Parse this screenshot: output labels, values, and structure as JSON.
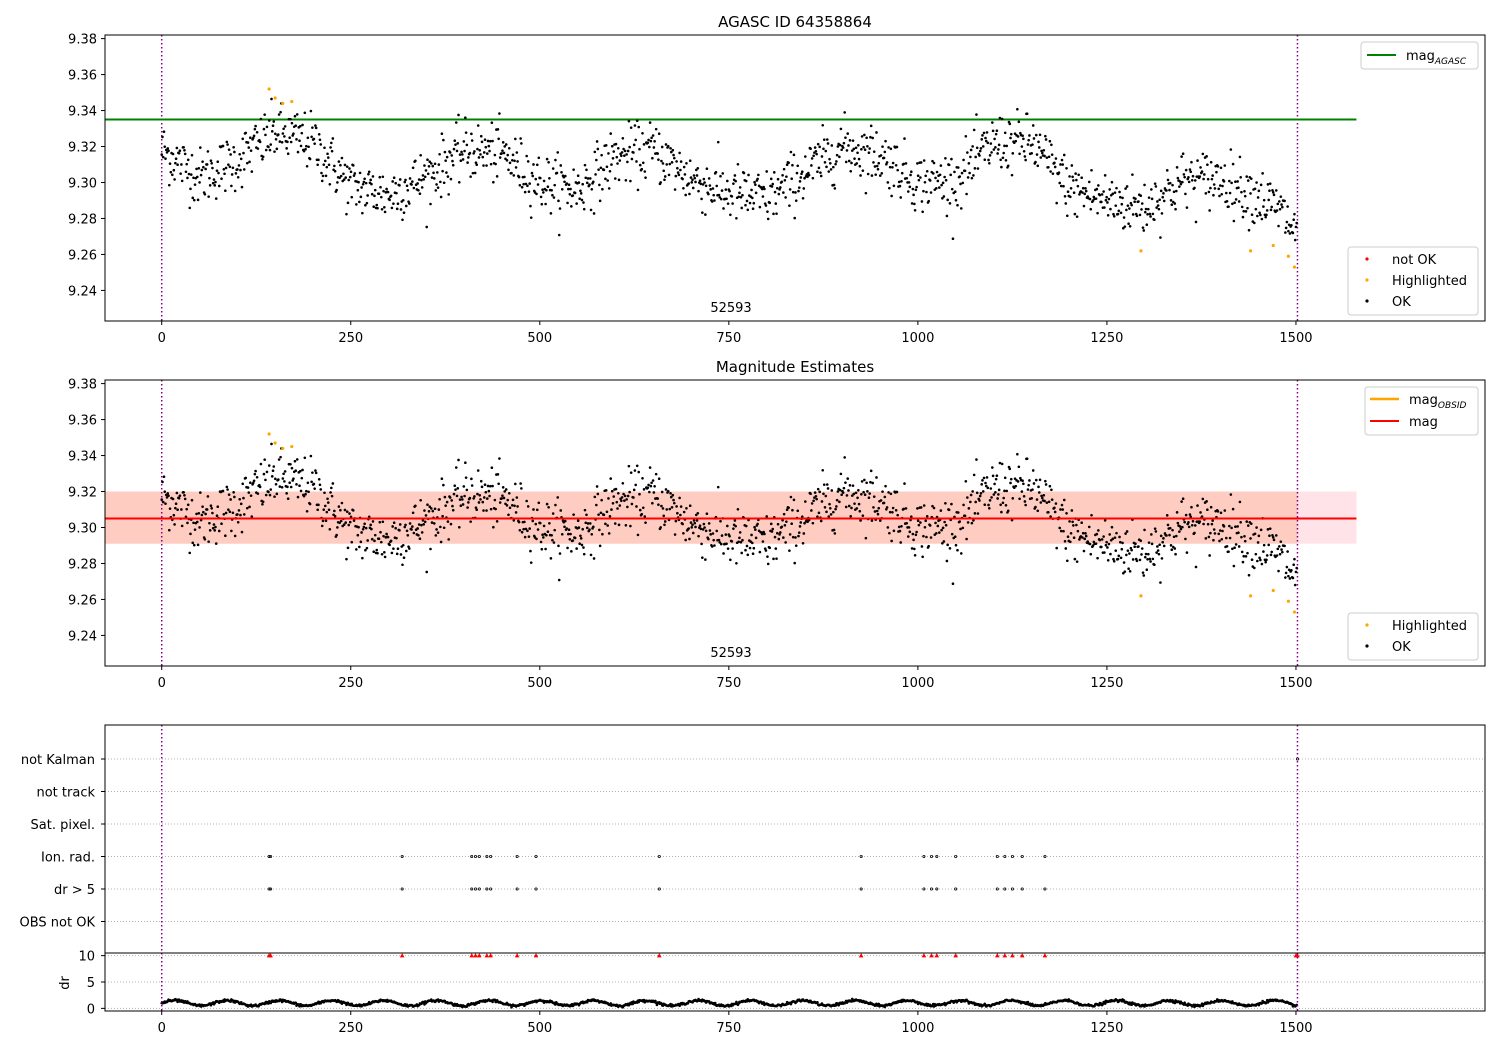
{
  "chart_data": [
    {
      "type": "scatter",
      "title": "AGASC ID 64358864",
      "xlabel": "",
      "ylabel": "",
      "xlim": [
        -75,
        1750
      ],
      "ylim": [
        9.223,
        9.382
      ],
      "x_ticks": [
        0,
        250,
        500,
        750,
        1000,
        1250,
        1500
      ],
      "x_tick_labels": [
        "0",
        "250",
        "500",
        "750",
        "1000",
        "1250",
        "1500"
      ],
      "y_ticks": [
        9.24,
        9.26,
        9.28,
        9.3,
        9.32,
        9.34,
        9.36,
        9.38
      ],
      "y_tick_labels": [
        "9.24",
        "9.26",
        "9.28",
        "9.30",
        "9.32",
        "9.34",
        "9.36",
        "9.38"
      ],
      "vlines": [
        0,
        1502
      ],
      "hline": {
        "label": "mag",
        "label_sub": "AGASC",
        "value": 9.335,
        "xmax": 1580,
        "color": "#008000"
      },
      "annotation": {
        "text": "52593",
        "x": 750,
        "y": 9.228
      },
      "legend_top": {
        "position": "top-right",
        "entries": [
          {
            "label": "mag",
            "sub": "AGASC",
            "color": "#008000"
          }
        ]
      },
      "legend_bottom": {
        "position": "bottom-right",
        "entries": [
          {
            "label": "not OK",
            "color": "#ff0000"
          },
          {
            "label": "Highlighted",
            "color": "#ffa500"
          },
          {
            "label": "OK",
            "color": "#000000"
          }
        ]
      },
      "highlighted": {
        "x": [
          142,
          150,
          160,
          172,
          1295,
          1440,
          1470,
          1490,
          1498
        ],
        "y": [
          9.352,
          9.347,
          9.344,
          9.345,
          9.262,
          9.262,
          9.265,
          9.259,
          9.253
        ]
      },
      "ok_trend": {
        "x": [
          0,
          50,
          100,
          150,
          200,
          250,
          300,
          350,
          400,
          450,
          500,
          550,
          600,
          650,
          700,
          750,
          800,
          850,
          900,
          950,
          1000,
          1050,
          1100,
          1150,
          1200,
          1250,
          1300,
          1350,
          1400,
          1450,
          1480,
          1500
        ],
        "y": [
          9.318,
          9.303,
          9.312,
          9.328,
          9.322,
          9.298,
          9.293,
          9.303,
          9.318,
          9.316,
          9.3,
          9.296,
          9.314,
          9.318,
          9.302,
          9.294,
          9.291,
          9.305,
          9.32,
          9.315,
          9.3,
          9.301,
          9.322,
          9.322,
          9.297,
          9.29,
          9.286,
          9.301,
          9.302,
          9.292,
          9.284,
          9.272
        ],
        "n_points": 1500,
        "scatter": 0.008
      }
    },
    {
      "type": "scatter",
      "title": "Magnitude Estimates",
      "xlabel": "",
      "ylabel": "",
      "xlim": [
        -75,
        1750
      ],
      "ylim": [
        9.223,
        9.382
      ],
      "x_ticks": [
        0,
        250,
        500,
        750,
        1000,
        1250,
        1500
      ],
      "x_tick_labels": [
        "0",
        "250",
        "500",
        "750",
        "1000",
        "1250",
        "1500"
      ],
      "y_ticks": [
        9.24,
        9.26,
        9.28,
        9.3,
        9.32,
        9.34,
        9.36,
        9.38
      ],
      "y_tick_labels": [
        "9.24",
        "9.26",
        "9.28",
        "9.30",
        "9.32",
        "9.34",
        "9.36",
        "9.38"
      ],
      "vlines": [
        0,
        1502
      ],
      "mean_line": {
        "label": "mag",
        "value": 9.305,
        "xmax": 1580,
        "color": "#ff0000"
      },
      "band_outer": {
        "low": 9.291,
        "high": 9.32,
        "xmax": 1580,
        "color": "#ffc0cb"
      },
      "band_inner": {
        "low": 9.291,
        "high": 9.32,
        "xmax": 1502,
        "color": "#ffa07a"
      },
      "annotation": {
        "text": "52593",
        "x": 750,
        "y": 9.228
      },
      "legend_top": {
        "position": "top-right",
        "entries": [
          {
            "label": "mag",
            "sub": "OBSID",
            "color": "#ffa500"
          },
          {
            "label": "mag",
            "color": "#ff0000"
          }
        ]
      },
      "legend_bottom": {
        "position": "bottom-right",
        "entries": [
          {
            "label": "Highlighted",
            "color": "#ffa500"
          },
          {
            "label": "OK",
            "color": "#000000"
          }
        ]
      },
      "highlighted": {
        "x": [
          142,
          150,
          160,
          172,
          1295,
          1440,
          1470,
          1490,
          1498
        ],
        "y": [
          9.352,
          9.347,
          9.344,
          9.345,
          9.262,
          9.262,
          9.265,
          9.259,
          9.253
        ]
      }
    },
    {
      "type": "scatter",
      "title": "",
      "xlim": [
        -75,
        1750
      ],
      "x_ticks": [
        0,
        250,
        500,
        750,
        1000,
        1250,
        1500
      ],
      "x_tick_labels": [
        "0",
        "250",
        "500",
        "750",
        "1000",
        "1250",
        "1500"
      ],
      "vlines": [
        0,
        1502
      ],
      "flag_rows": [
        "not Kalman",
        "not track",
        "Sat. pixel.",
        "Ion. rad.",
        "dr > 5",
        "OBS not OK"
      ],
      "flags": {
        "Ion. rad.": [
          142,
          144,
          318,
          410,
          415,
          420,
          430,
          435,
          470,
          495,
          658,
          925,
          1008,
          1018,
          1025,
          1050,
          1105,
          1115,
          1125,
          1138,
          1168
        ],
        "dr > 5": [
          142,
          144,
          318,
          410,
          415,
          420,
          430,
          435,
          470,
          495,
          658,
          925,
          1008,
          1018,
          1025,
          1050,
          1105,
          1115,
          1125,
          1138,
          1168
        ],
        "not Kalman": [
          1502
        ]
      },
      "dr_panel": {
        "ylabel": "dr",
        "ylim": [
          -0.5,
          10.5
        ],
        "y_ticks": [
          0,
          5,
          10
        ],
        "y_tick_labels": [
          "0",
          "5",
          "10"
        ],
        "clip_markers_x": [
          142,
          144,
          318,
          410,
          415,
          420,
          430,
          435,
          470,
          495,
          658,
          925,
          1008,
          1018,
          1025,
          1050,
          1105,
          1115,
          1125,
          1138,
          1168,
          1500,
          1502
        ],
        "clip_value": 10,
        "baseline": 1.0
      }
    }
  ]
}
